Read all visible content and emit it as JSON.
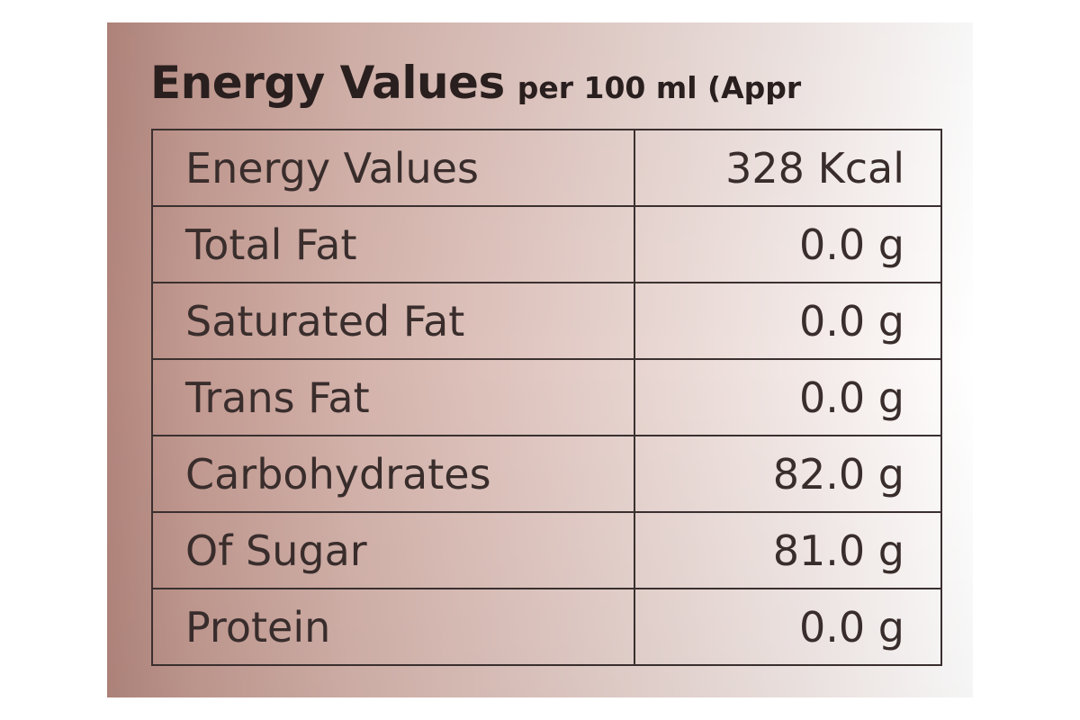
{
  "heading": {
    "title": "Energy Values",
    "subtitle": "per 100 ml (Appr"
  },
  "table": {
    "rows": [
      {
        "label": "Energy Values",
        "value": "328 Kcal"
      },
      {
        "label": "Total Fat",
        "value": "0.0 g"
      },
      {
        "label": "Saturated Fat",
        "value": "0.0 g"
      },
      {
        "label": "Trans Fat",
        "value": "0.0 g"
      },
      {
        "label": "Carbohydrates",
        "value": "82.0 g"
      },
      {
        "label": "Of Sugar",
        "value": "81.0 g"
      },
      {
        "label": "Protein",
        "value": "0.0 g"
      }
    ]
  },
  "colors": {
    "label_background_left": "#b2867d",
    "label_background_right": "#f2e8e6",
    "ink": "#3a2e2d"
  }
}
